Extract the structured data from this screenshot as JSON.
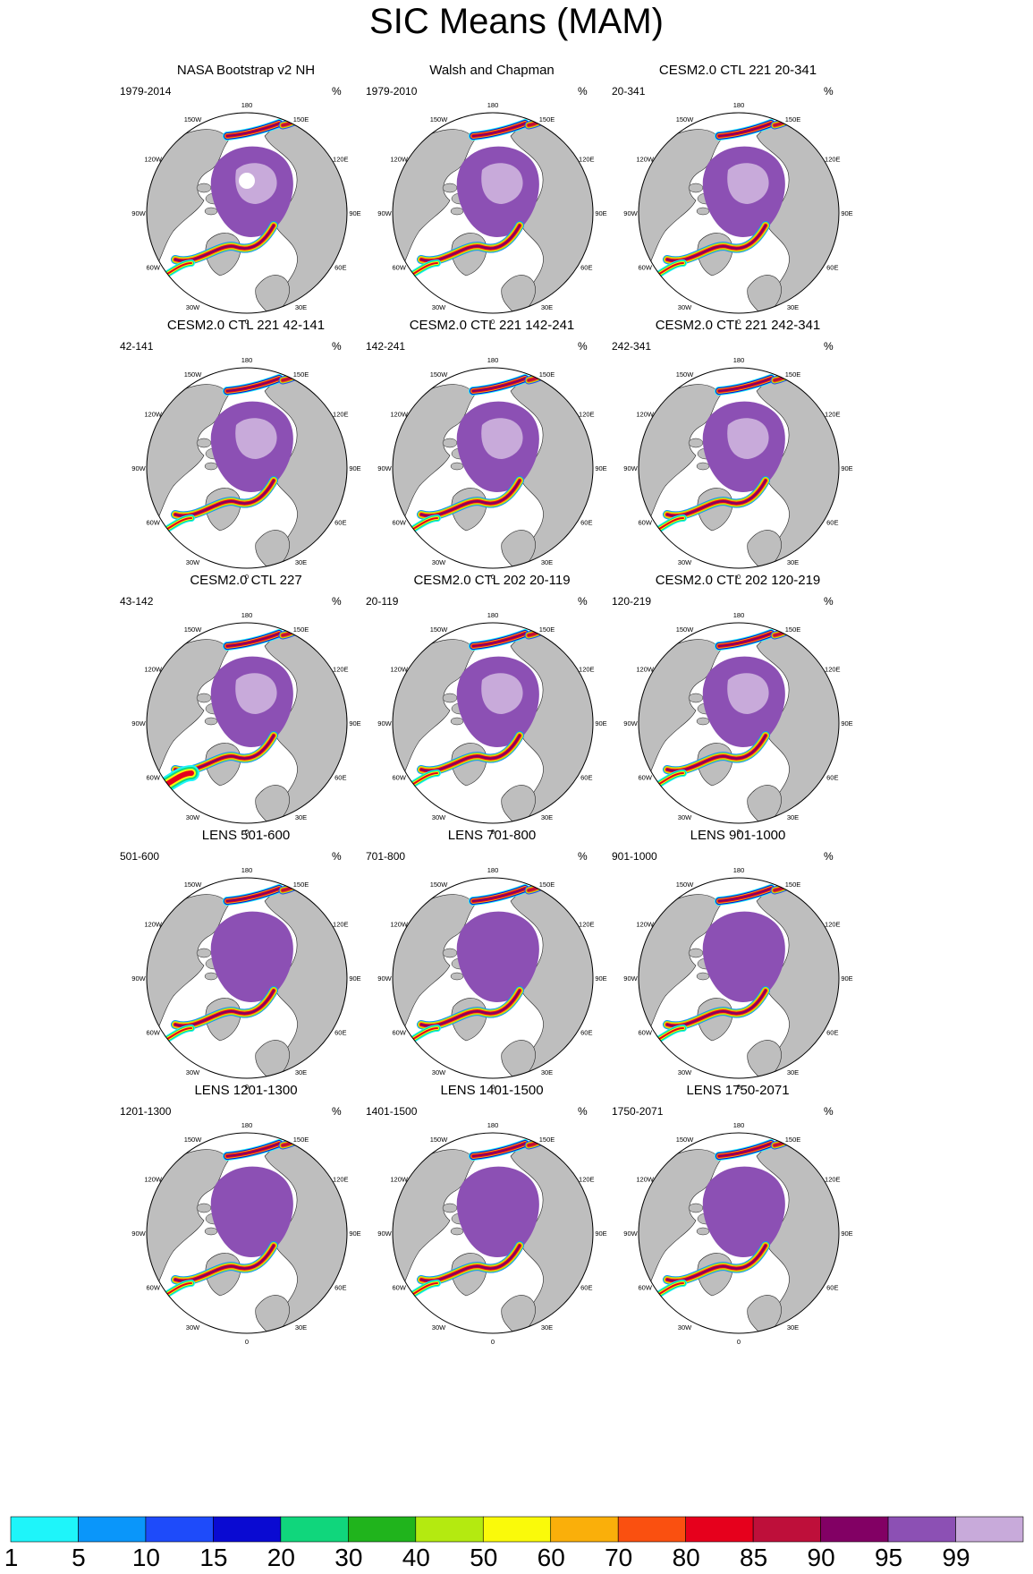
{
  "title": "SIC Means (MAM)",
  "unit": "%",
  "lon_labels": [
    "180",
    "150E",
    "120E",
    "90E",
    "60E",
    "30E",
    "0",
    "30W",
    "60W",
    "90W",
    "120W",
    "150W"
  ],
  "panels": [
    {
      "title": "NASA Bootstrap v2 NH",
      "period": "1979-2014",
      "pole_hole": true,
      "ice_extent": "obs"
    },
    {
      "title": "Walsh and Chapman",
      "period": "1979-2010",
      "pole_hole": false,
      "ice_extent": "obs"
    },
    {
      "title": "CESM2.0 CTL 221 20-341",
      "period": "20-341",
      "pole_hole": false,
      "ice_extent": "model"
    },
    {
      "title": "CESM2.0 CTL 221 42-141",
      "period": "42-141",
      "pole_hole": false,
      "ice_extent": "model"
    },
    {
      "title": "CESM2.0 CTL 221 142-241",
      "period": "142-241",
      "pole_hole": false,
      "ice_extent": "model"
    },
    {
      "title": "CESM2.0 CTL 221 242-341",
      "period": "242-341",
      "pole_hole": false,
      "ice_extent": "model"
    },
    {
      "title": "CESM2.0 CTL 227",
      "period": "43-142",
      "pole_hole": false,
      "ice_extent": "model_large"
    },
    {
      "title": "CESM2.0 CTL 202 20-119",
      "period": "20-119",
      "pole_hole": false,
      "ice_extent": "model"
    },
    {
      "title": "CESM2.0 CTL 202 120-219",
      "period": "120-219",
      "pole_hole": false,
      "ice_extent": "model"
    },
    {
      "title": "LENS 501-600",
      "period": "501-600",
      "pole_hole": false,
      "ice_extent": "lens"
    },
    {
      "title": "LENS 701-800",
      "period": "701-800",
      "pole_hole": false,
      "ice_extent": "lens"
    },
    {
      "title": "LENS 901-1000",
      "period": "901-1000",
      "pole_hole": false,
      "ice_extent": "lens"
    },
    {
      "title": "LENS 1201-1300",
      "period": "1201-1300",
      "pole_hole": false,
      "ice_extent": "lens"
    },
    {
      "title": "LENS 1401-1500",
      "period": "1401-1500",
      "pole_hole": false,
      "ice_extent": "lens"
    },
    {
      "title": "LENS 1750-2071",
      "period": "1750-2071",
      "pole_hole": false,
      "ice_extent": "lens"
    }
  ],
  "colorbar": {
    "labels": [
      "1",
      "5",
      "10",
      "15",
      "20",
      "30",
      "40",
      "50",
      "60",
      "70",
      "80",
      "85",
      "90",
      "95",
      "99"
    ],
    "colors": [
      "#1ef5fa",
      "#0a96fa",
      "#1e4bfa",
      "#0a0ad2",
      "#10d67c",
      "#20b41c",
      "#b4ea10",
      "#fafa0a",
      "#faaf0a",
      "#fa5010",
      "#e6001c",
      "#be0f3a",
      "#820064",
      "#8c50b4",
      "#c8aada"
    ]
  }
}
